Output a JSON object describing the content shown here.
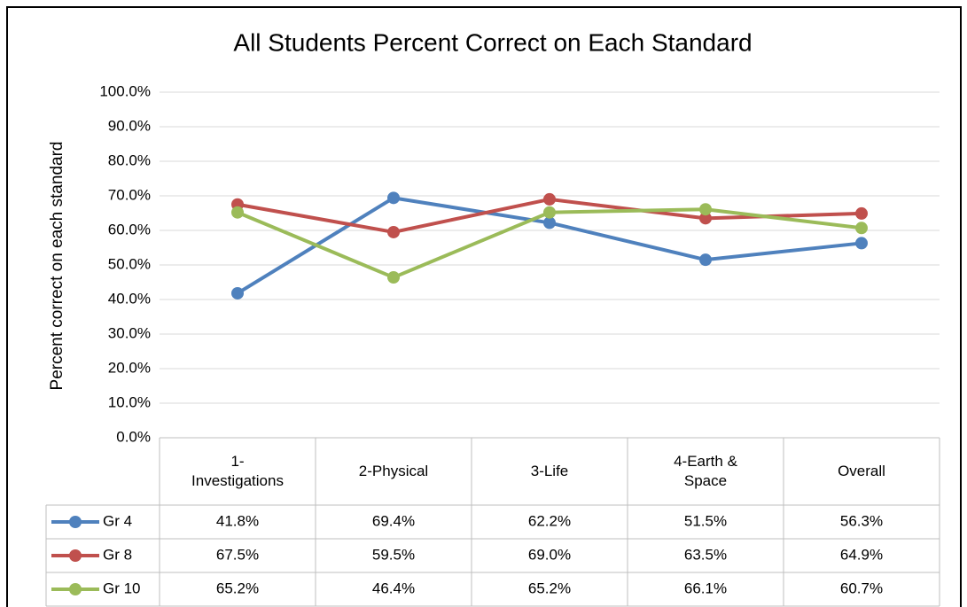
{
  "chart_data": {
    "type": "line",
    "title": "All Students Percent Correct on Each Standard",
    "y_label": "Percent correct on each standard",
    "categories": [
      "1-Investigations",
      "2-Physical",
      "3-Life",
      "4-Earth & Space",
      "Overall"
    ],
    "series": [
      {
        "name": "Gr 4",
        "color": "#4f81bd",
        "values": [
          41.8,
          69.4,
          62.2,
          51.5,
          56.3
        ],
        "value_labels": [
          "41.8%",
          "69.4%",
          "62.2%",
          "51.5%",
          "56.3%"
        ]
      },
      {
        "name": "Gr 8",
        "color": "#c0504d",
        "values": [
          67.5,
          59.5,
          69.0,
          63.5,
          64.9
        ],
        "value_labels": [
          "67.5%",
          "59.5%",
          "69.0%",
          "63.5%",
          "64.9%"
        ]
      },
      {
        "name": "Gr 10",
        "color": "#9bbb59",
        "values": [
          65.2,
          46.4,
          65.2,
          66.1,
          60.7
        ],
        "value_labels": [
          "65.2%",
          "46.4%",
          "65.2%",
          "66.1%",
          "60.7%"
        ]
      }
    ],
    "ylim": [
      0,
      100
    ],
    "yticks": [
      {
        "value": 0,
        "label": "0.0%"
      },
      {
        "value": 10,
        "label": "10.0%"
      },
      {
        "value": 20,
        "label": "20.0%"
      },
      {
        "value": 30,
        "label": "30.0%"
      },
      {
        "value": 40,
        "label": "40.0%"
      },
      {
        "value": 50,
        "label": "50.0%"
      },
      {
        "value": 60,
        "label": "60.0%"
      },
      {
        "value": 70,
        "label": "70.0%"
      },
      {
        "value": 80,
        "label": "80.0%"
      },
      {
        "value": 90,
        "label": "90.0%"
      },
      {
        "value": 100,
        "label": "100.0%"
      }
    ],
    "grid": true,
    "data_table": true
  }
}
